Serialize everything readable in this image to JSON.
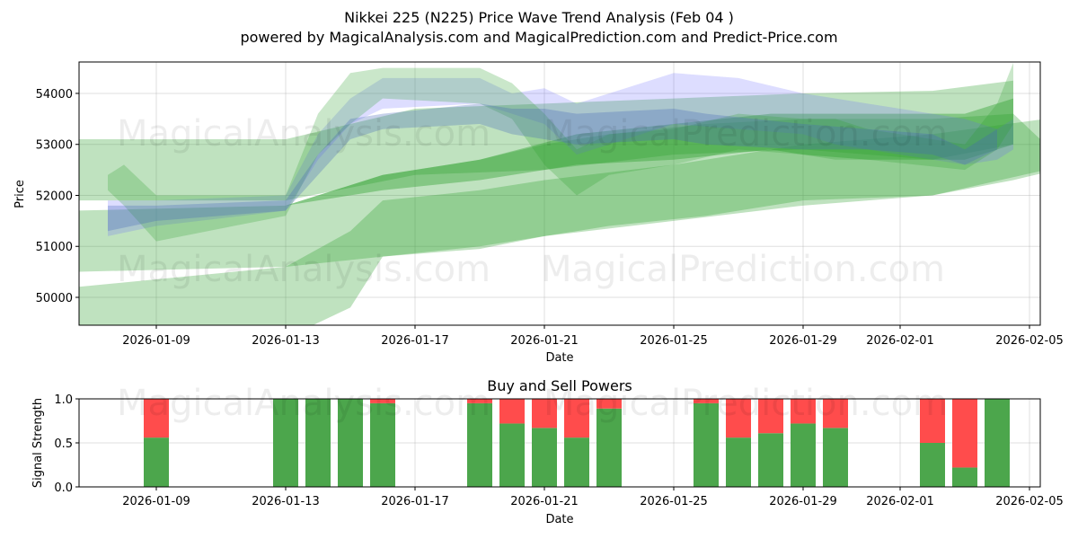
{
  "chart_data": [
    {
      "type": "area",
      "title": "Nikkei 225 (N225) Price Wave Trend Analysis (Feb 04 )",
      "subtitle": "powered by MagicalAnalysis.com and MagicalPrediction.com and Predict-Price.com",
      "xlabel": "Date",
      "ylabel": "Price",
      "xlim": [
        "2026-01-06T14:40",
        "2026-02-05T08:00"
      ],
      "ylim": [
        49454,
        54616
      ],
      "grid": true,
      "xticks": [
        "2026-01-09",
        "2026-01-13",
        "2026-01-17",
        "2026-01-21",
        "2026-01-25",
        "2026-01-29",
        "2026-02-01",
        "2026-02-05"
      ],
      "yticks": [
        50000,
        51000,
        52000,
        53000,
        54000
      ],
      "watermarks": [
        "MagicalAnalysis.com",
        "MagicalPrediction.com"
      ],
      "bands": [
        {
          "color": "#2ca02c",
          "opacity": 0.3,
          "x": [
            "2026-01-06T12:00",
            "2026-01-13",
            "2026-01-17",
            "2026-01-21",
            "2026-01-25",
            "2026-01-29",
            "2026-02-02",
            "2026-02-04T12:00"
          ],
          "upper": [
            53100,
            53100,
            53700,
            53800,
            53900,
            54000,
            54050,
            54250
          ],
          "lower": [
            51900,
            51900,
            52400,
            52500,
            52800,
            52900,
            52700,
            53000
          ]
        },
        {
          "color": "#2ca02c",
          "opacity": 0.3,
          "x": [
            "2026-01-06T12:00",
            "2026-01-13",
            "2026-01-16",
            "2026-01-19",
            "2026-01-21",
            "2026-01-23",
            "2026-01-26",
            "2026-01-29",
            "2026-02-02",
            "2026-02-04T12:00",
            "2026-02-05T12:00"
          ],
          "upper": [
            51700,
            51800,
            52400,
            52700,
            53000,
            53200,
            53400,
            53500,
            53500,
            53600,
            53000
          ],
          "lower": [
            50500,
            50600,
            50800,
            51000,
            51200,
            51400,
            51600,
            51900,
            52000,
            52300,
            52450
          ]
        },
        {
          "color": "#2ca02c",
          "opacity": 0.3,
          "x": [
            "2026-01-06T12:00",
            "2026-01-13",
            "2026-01-15",
            "2026-01-16",
            "2026-01-19",
            "2026-01-21",
            "2026-01-25",
            "2026-01-29",
            "2026-02-02",
            "2026-02-05T12:00"
          ],
          "upper": [
            50200,
            50600,
            51300,
            51900,
            52100,
            52300,
            52600,
            53000,
            53200,
            53500
          ],
          "lower": [
            49000,
            49200,
            49800,
            50800,
            50950,
            51200,
            51500,
            51800,
            52000,
            52500
          ]
        },
        {
          "color": "#2ca02c",
          "opacity": 0.4,
          "x": [
            "2026-01-13",
            "2026-01-16",
            "2026-01-19",
            "2026-01-22",
            "2026-01-25",
            "2026-01-28",
            "2026-01-29",
            "2026-01-31",
            "2026-02-03",
            "2026-02-04T12:00"
          ],
          "upper": [
            51800,
            52400,
            52700,
            53200,
            53400,
            53600,
            53600,
            53600,
            53600,
            53900
          ],
          "lower": [
            51800,
            52100,
            52300,
            52600,
            52700,
            52900,
            52800,
            52700,
            52700,
            53000
          ]
        },
        {
          "color": "#6666ff",
          "opacity": 0.22,
          "x": [
            "2026-01-07T12:00",
            "2026-01-09",
            "2026-01-13",
            "2026-01-14",
            "2026-01-15",
            "2026-01-16",
            "2026-01-19",
            "2026-01-20",
            "2026-01-21",
            "2026-01-22",
            "2026-01-23",
            "2026-01-25",
            "2026-01-27",
            "2026-01-29",
            "2026-01-30",
            "2026-01-31",
            "2026-02-03",
            "2026-02-04",
            "2026-02-04T12:00"
          ],
          "upper": [
            51900,
            51900,
            52000,
            53200,
            53900,
            54300,
            54300,
            54000,
            54100,
            53800,
            54000,
            54400,
            54300,
            54000,
            53900,
            53800,
            53500,
            53300,
            53500
          ],
          "lower": [
            51200,
            51400,
            51700,
            52700,
            53400,
            53700,
            53800,
            53600,
            53400,
            52800,
            53000,
            53400,
            53300,
            53200,
            53000,
            52900,
            52600,
            52700,
            52900
          ]
        },
        {
          "color": "#2ca02c",
          "opacity": 0.25,
          "x": [
            "2026-01-07T12:00",
            "2026-01-08",
            "2026-01-09",
            "2026-01-13",
            "2026-01-14",
            "2026-01-15",
            "2026-01-16",
            "2026-01-19",
            "2026-01-20",
            "2026-01-21",
            "2026-01-22",
            "2026-01-23",
            "2026-01-25",
            "2026-01-27",
            "2026-01-29",
            "2026-01-30",
            "2026-01-31",
            "2026-02-03",
            "2026-02-04",
            "2026-02-04T12:00"
          ],
          "upper": [
            52400,
            52600,
            52000,
            52000,
            53600,
            54400,
            54500,
            54500,
            54200,
            53600,
            52900,
            53200,
            53300,
            53600,
            53500,
            53500,
            53300,
            53000,
            53800,
            54600
          ],
          "lower": [
            52100,
            51800,
            51100,
            51600,
            52800,
            53400,
            53900,
            53800,
            53500,
            52600,
            52000,
            52400,
            52600,
            52900,
            52800,
            52700,
            52700,
            52500,
            52900,
            53400
          ]
        },
        {
          "color": "#4466bb",
          "opacity": 0.3,
          "x": [
            "2026-01-07T12:00",
            "2026-01-09",
            "2026-01-13",
            "2026-01-14",
            "2026-01-15",
            "2026-01-16",
            "2026-01-19",
            "2026-01-20",
            "2026-01-21",
            "2026-01-22",
            "2026-01-25",
            "2026-01-26",
            "2026-01-29",
            "2026-01-31",
            "2026-02-02",
            "2026-02-03",
            "2026-02-04"
          ],
          "upper": [
            51800,
            51800,
            51900,
            52800,
            53500,
            53600,
            53800,
            53700,
            53700,
            53600,
            53700,
            53600,
            53400,
            53300,
            53200,
            52900,
            53300
          ],
          "lower": [
            51300,
            51500,
            51700,
            52400,
            53100,
            53300,
            53400,
            53200,
            53100,
            53000,
            53100,
            53000,
            52900,
            52900,
            52800,
            52600,
            52900
          ]
        }
      ]
    },
    {
      "type": "bar",
      "title": "Buy and Sell Powers",
      "xlabel": "Date",
      "ylabel": "Signal Strength",
      "ylim": [
        0,
        1
      ],
      "yticks": [
        "0.0",
        "0.5",
        "1.0"
      ],
      "xticks": [
        "2026-01-09",
        "2026-01-13",
        "2026-01-17",
        "2026-01-21",
        "2026-01-25",
        "2026-01-29",
        "2026-02-01",
        "2026-02-05"
      ],
      "colors": {
        "buy": "#4ca64c",
        "sell": "#ff4c4c"
      },
      "categories": [
        "2026-01-09",
        "2026-01-13",
        "2026-01-14",
        "2026-01-15",
        "2026-01-16",
        "2026-01-19",
        "2026-01-20",
        "2026-01-21",
        "2026-01-22",
        "2026-01-23",
        "2026-01-26",
        "2026-01-27",
        "2026-01-28",
        "2026-01-29",
        "2026-01-30",
        "2026-02-02",
        "2026-02-03",
        "2026-02-04"
      ],
      "series": [
        {
          "name": "Buy",
          "values": [
            0.56,
            1,
            1,
            1,
            0.95,
            0.95,
            0.72,
            0.67,
            0.56,
            0.89,
            0.95,
            0.56,
            0.61,
            0.72,
            0.67,
            0.5,
            0.22,
            1
          ]
        },
        {
          "name": "Sell",
          "values": [
            0.44,
            0,
            0,
            0,
            0.05,
            0.05,
            0.28,
            0.33,
            0.44,
            0.11,
            0.05,
            0.44,
            0.39,
            0.28,
            0.33,
            0.5,
            0.78,
            0
          ]
        }
      ]
    }
  ]
}
